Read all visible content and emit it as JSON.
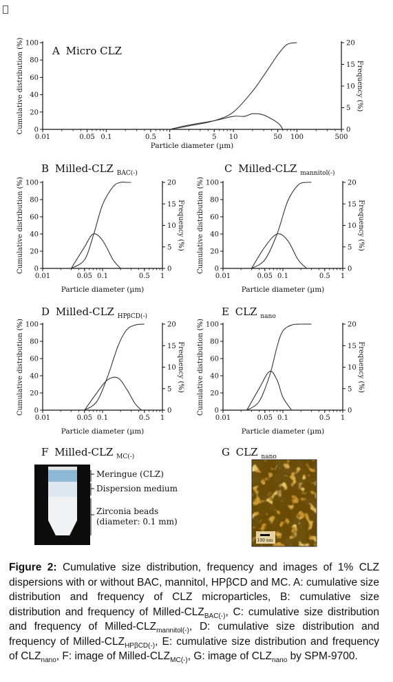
{
  "figure": {
    "panels": {
      "A": {
        "letter": "A",
        "title": "Micro CLZ",
        "sub": ""
      },
      "B": {
        "letter": "B",
        "title": "Milled-CLZ",
        "sub": "BAC(-)"
      },
      "C": {
        "letter": "C",
        "title": "Milled-CLZ",
        "sub": "mannitol(-)"
      },
      "D": {
        "letter": "D",
        "title": "Milled-CLZ",
        "sub": "HPβCD(-)"
      },
      "E": {
        "letter": "E",
        "title": "CLZ",
        "sub": "nano"
      },
      "F": {
        "letter": "F",
        "title": "Milled-CLZ",
        "sub": "MC(-)"
      },
      "G": {
        "letter": "G",
        "title": "CLZ",
        "sub": "nano"
      }
    },
    "y_left_label": "Cumulative distribution (%)",
    "y_right_label": "Frequency (%)",
    "x_label": "Particle diameter (µm)",
    "photo_labels": [
      "Meringue (CLZ)",
      "Dispersion medium",
      "Zirconia beads",
      "(diameter: 0.1 mm)"
    ],
    "scale_bar": "100 nm"
  },
  "chart_data": [
    {
      "panel": "A",
      "type": "line",
      "xscale": "log",
      "xlim": [
        0.01,
        500
      ],
      "ylim": [
        0,
        100
      ],
      "y2lim": [
        0,
        20
      ],
      "xticks": [
        "0.01",
        "0.05",
        "0.1",
        "0.5",
        "1",
        "5",
        "10",
        "50",
        "100",
        "500"
      ],
      "yticks": [
        "0",
        "20",
        "40",
        "60",
        "80",
        "100"
      ],
      "y2ticks": [
        "0",
        "5",
        "10",
        "15",
        "20"
      ],
      "series": [
        {
          "axis": "left",
          "x": [
            1,
            2,
            5,
            10,
            20,
            30,
            50,
            70,
            100
          ],
          "y": [
            0,
            4,
            10,
            20,
            44,
            62,
            86,
            98,
            100
          ]
        },
        {
          "axis": "right",
          "x": [
            1,
            2,
            5,
            10,
            15,
            20,
            30,
            50,
            60
          ],
          "y": [
            0,
            1,
            2,
            3,
            3,
            3.6,
            3.3,
            1.5,
            0
          ]
        }
      ]
    },
    {
      "panel": "B",
      "type": "line",
      "xscale": "log",
      "xlim": [
        0.01,
        1
      ],
      "ylim": [
        0,
        100
      ],
      "y2lim": [
        0,
        20
      ],
      "xticks": [
        "0.01",
        "0.05",
        "0.1",
        "0.5",
        "1"
      ],
      "yticks": [
        "0",
        "20",
        "40",
        "60",
        "80",
        "100"
      ],
      "y2ticks": [
        "0",
        "5",
        "10",
        "15",
        "20"
      ],
      "series": [
        {
          "axis": "left",
          "x": [
            0.03,
            0.05,
            0.07,
            0.1,
            0.15,
            0.2,
            0.25,
            0.3
          ],
          "y": [
            0,
            10,
            38,
            74,
            95,
            100,
            100,
            100
          ]
        },
        {
          "axis": "right",
          "x": [
            0.03,
            0.05,
            0.07,
            0.1,
            0.15,
            0.2
          ],
          "y": [
            0,
            5,
            8,
            6.5,
            2,
            0
          ]
        }
      ]
    },
    {
      "panel": "C",
      "type": "line",
      "xscale": "log",
      "xlim": [
        0.01,
        1
      ],
      "ylim": [
        0,
        100
      ],
      "y2lim": [
        0,
        20
      ],
      "xticks": [
        "0.01",
        "0.05",
        "0.1",
        "0.5",
        "1"
      ],
      "yticks": [
        "0",
        "20",
        "40",
        "60",
        "80",
        "100"
      ],
      "y2ticks": [
        "0",
        "5",
        "10",
        "15",
        "20"
      ],
      "series": [
        {
          "axis": "left",
          "x": [
            0.03,
            0.05,
            0.08,
            0.12,
            0.18,
            0.25,
            0.3
          ],
          "y": [
            0,
            10,
            40,
            78,
            97,
            100,
            100
          ]
        },
        {
          "axis": "right",
          "x": [
            0.03,
            0.05,
            0.08,
            0.12,
            0.18,
            0.25
          ],
          "y": [
            0,
            5,
            8,
            6.5,
            2,
            0
          ]
        }
      ]
    },
    {
      "panel": "D",
      "type": "line",
      "xscale": "log",
      "xlim": [
        0.01,
        1
      ],
      "ylim": [
        0,
        100
      ],
      "y2lim": [
        0,
        20
      ],
      "xticks": [
        "0.01",
        "0.05",
        "0.1",
        "0.5",
        "1"
      ],
      "yticks": [
        "0",
        "20",
        "40",
        "60",
        "80",
        "100"
      ],
      "y2ticks": [
        "0",
        "5",
        "10",
        "15",
        "20"
      ],
      "series": [
        {
          "axis": "left",
          "x": [
            0.05,
            0.08,
            0.12,
            0.18,
            0.25,
            0.35,
            0.5
          ],
          "y": [
            0,
            10,
            38,
            74,
            93,
            99,
            100
          ]
        },
        {
          "axis": "right",
          "x": [
            0.05,
            0.08,
            0.12,
            0.18,
            0.25,
            0.35,
            0.45
          ],
          "y": [
            0,
            4,
            7,
            7.5,
            5,
            1.5,
            0
          ]
        }
      ]
    },
    {
      "panel": "E",
      "type": "line",
      "xscale": "log",
      "xlim": [
        0.01,
        1
      ],
      "ylim": [
        0,
        100
      ],
      "y2lim": [
        0,
        20
      ],
      "xticks": [
        "0.01",
        "0.05",
        "0.1",
        "0.5",
        "1"
      ],
      "yticks": [
        "0",
        "20",
        "40",
        "60",
        "80",
        "100"
      ],
      "y2ticks": [
        "0",
        "5",
        "10",
        "15",
        "20"
      ],
      "series": [
        {
          "axis": "left",
          "x": [
            0.025,
            0.04,
            0.06,
            0.08,
            0.1,
            0.14,
            0.2,
            0.3
          ],
          "y": [
            0,
            10,
            40,
            74,
            92,
            99,
            100,
            100
          ]
        },
        {
          "axis": "right",
          "x": [
            0.025,
            0.04,
            0.06,
            0.08,
            0.1,
            0.14
          ],
          "y": [
            0,
            5,
            9,
            7,
            3,
            0
          ]
        }
      ]
    }
  ],
  "caption": {
    "label": "Figure 2:",
    "t1": " Cumulative size distribution, frequency and images of 1% CLZ dispersions with or without BAC, mannitol, HPβCD and MC. A: cumulative size distribution and frequency of CLZ microparticles, B: cumulative size distribution and frequency of Milled-CLZ",
    "s1": "BAC(-)",
    "t2": ", C: cumulative size distribution and frequency of Milled-CLZ",
    "s2": "mannitol(-)",
    "t3": ", D: cumulative size distribution and frequency of Milled-CLZ",
    "s3": "HPβCD(-)",
    "t4": ", E: cumulative size distribution and frequency of CLZ",
    "s4": "nano",
    "t5": ", F: image of Milled-CLZ",
    "s5": "MC(-)",
    "t6": ", G: image of CLZ",
    "s6": "nano",
    "t7": " by SPM-9700."
  }
}
